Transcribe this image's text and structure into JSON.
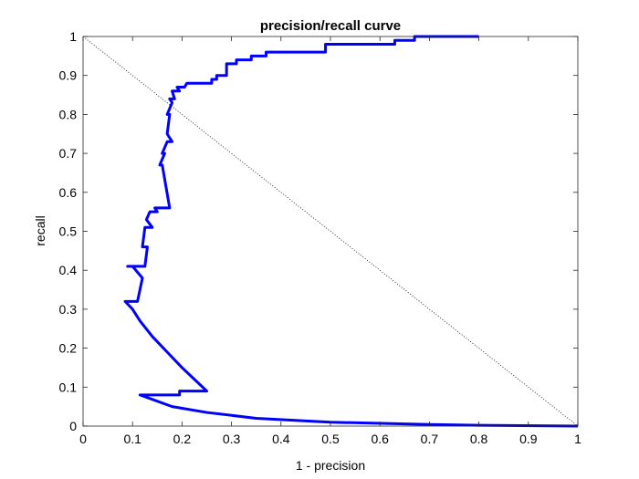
{
  "chart_data": {
    "type": "line",
    "title": "precision/recall curve",
    "xlabel": "1 - precision",
    "ylabel": "recall",
    "xlim": [
      0,
      1
    ],
    "ylim": [
      0,
      1
    ],
    "x_ticks": [
      "0",
      "0.1",
      "0.2",
      "0.3",
      "0.4",
      "0.5",
      "0.6",
      "0.7",
      "0.8",
      "0.9",
      "1"
    ],
    "y_ticks": [
      "0",
      "0.1",
      "0.2",
      "0.3",
      "0.4",
      "0.5",
      "0.6",
      "0.7",
      "0.8",
      "0.9",
      "1"
    ],
    "grid": false,
    "series": [
      {
        "color": "#0000ff",
        "style": "solid",
        "x": [
          1.0,
          0.8,
          0.7,
          0.5,
          0.35,
          0.25,
          0.18,
          0.115,
          0.115,
          0.195,
          0.195,
          0.25,
          0.225,
          0.2,
          0.17,
          0.14,
          0.115,
          0.1,
          0.085,
          0.11,
          0.12,
          0.1,
          0.09,
          0.125,
          0.13,
          0.12,
          0.125,
          0.14,
          0.128,
          0.135,
          0.15,
          0.145,
          0.155,
          0.165,
          0.175,
          0.16,
          0.155,
          0.165,
          0.16,
          0.17,
          0.18,
          0.17,
          0.175,
          0.17,
          0.18,
          0.175,
          0.185,
          0.18,
          0.195,
          0.19,
          0.205,
          0.21,
          0.215,
          0.26,
          0.26,
          0.27,
          0.27,
          0.29,
          0.29,
          0.31,
          0.31,
          0.34,
          0.34,
          0.37,
          0.37,
          0.4,
          0.4,
          0.49,
          0.49,
          0.63,
          0.63,
          0.67,
          0.67,
          0.8
        ],
        "y": [
          0.0,
          0.002,
          0.004,
          0.01,
          0.02,
          0.035,
          0.05,
          0.08,
          0.08,
          0.08,
          0.09,
          0.09,
          0.12,
          0.15,
          0.19,
          0.23,
          0.27,
          0.3,
          0.32,
          0.32,
          0.38,
          0.41,
          0.41,
          0.41,
          0.46,
          0.46,
          0.51,
          0.51,
          0.53,
          0.55,
          0.55,
          0.56,
          0.56,
          0.56,
          0.56,
          0.67,
          0.67,
          0.7,
          0.7,
          0.73,
          0.73,
          0.75,
          0.8,
          0.8,
          0.83,
          0.84,
          0.84,
          0.86,
          0.86,
          0.87,
          0.87,
          0.88,
          0.88,
          0.88,
          0.89,
          0.89,
          0.9,
          0.9,
          0.93,
          0.93,
          0.94,
          0.94,
          0.95,
          0.95,
          0.96,
          0.96,
          0.96,
          0.96,
          0.98,
          0.98,
          0.99,
          0.99,
          1.0,
          1.0
        ]
      },
      {
        "color": "#000000",
        "style": "dotted",
        "x": [
          0,
          1
        ],
        "y": [
          1,
          0
        ]
      }
    ]
  }
}
